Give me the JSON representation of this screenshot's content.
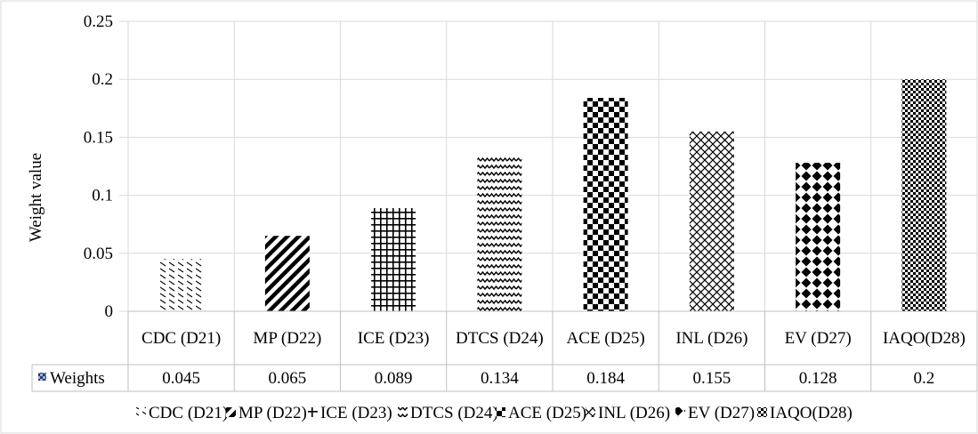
{
  "chart_data": {
    "type": "bar",
    "ylabel": "Weight value",
    "xlabel": "",
    "ylim": [
      0,
      0.25
    ],
    "yticks": [
      "0",
      "0.05",
      "0.1",
      "0.15",
      "0.2",
      "0.25"
    ],
    "grid": true,
    "categories": [
      {
        "label": "CDC (D21)",
        "pattern": "dashes"
      },
      {
        "label": "MP (D22)",
        "pattern": "diagonal"
      },
      {
        "label": "ICE (D23)",
        "pattern": "grid"
      },
      {
        "label": "DTCS (D24)",
        "pattern": "zigzag"
      },
      {
        "label": "ACE (D25)",
        "pattern": "checker"
      },
      {
        "label": "INL (D26)",
        "pattern": "diamond"
      },
      {
        "label": "EV (D27)",
        "pattern": "dots"
      },
      {
        "label": "IAQO(D28)",
        "pattern": "finecheck"
      }
    ],
    "series": [
      {
        "name": "Weights",
        "values": [
          0.045,
          0.065,
          0.089,
          0.134,
          0.184,
          0.155,
          0.128,
          0.2
        ],
        "value_labels": [
          "0.045",
          "0.065",
          "0.089",
          "0.134",
          "0.184",
          "0.155",
          "0.128",
          "0.2"
        ]
      }
    ],
    "legend": {
      "placement": "bottom",
      "items": [
        "CDC (D21)",
        "MP (D22)",
        "ICE (D23)",
        "DTCS (D24)",
        "ACE (D25)",
        "INL (D26)",
        "EV (D27)",
        "IAQO(D28)"
      ]
    },
    "data_table": true
  },
  "colors": {
    "bar_fill": "#000000",
    "gridline": "#d9d9d9",
    "table_border": "#bfbfbf",
    "table_key": "#4472c4"
  }
}
